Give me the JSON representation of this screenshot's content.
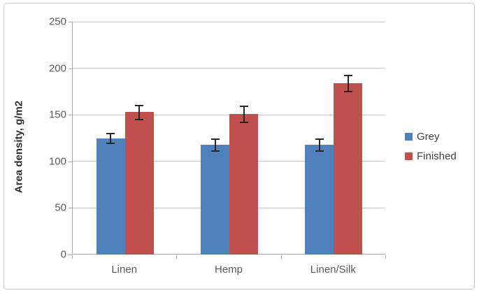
{
  "chart_data": {
    "type": "bar",
    "title": "",
    "ylabel": "Area density, g/m2",
    "xlabel": "",
    "categories": [
      "Linen",
      "Hemp",
      "Linen/Silk"
    ],
    "series": [
      {
        "name": "Grey",
        "color": "#4F81BD",
        "values": [
          125,
          118,
          118
        ],
        "errors": [
          6,
          7,
          7
        ]
      },
      {
        "name": "Finished",
        "color": "#C0504D",
        "values": [
          153,
          151,
          184
        ],
        "errors": [
          8,
          9,
          9
        ]
      }
    ],
    "ylim": [
      0,
      250
    ],
    "ytick_step": 50,
    "yticks": [
      "0",
      "50",
      "100",
      "150",
      "200",
      "250"
    ],
    "grid": true,
    "error_bars": true,
    "legend_position": "right",
    "colors": {
      "grid": "#c6c6c6",
      "axis": "#a6a6a6",
      "error_bar": "#262626",
      "tick_text": "#595959",
      "frame_border": "#c9c9c9",
      "background": "#ffffff"
    }
  }
}
